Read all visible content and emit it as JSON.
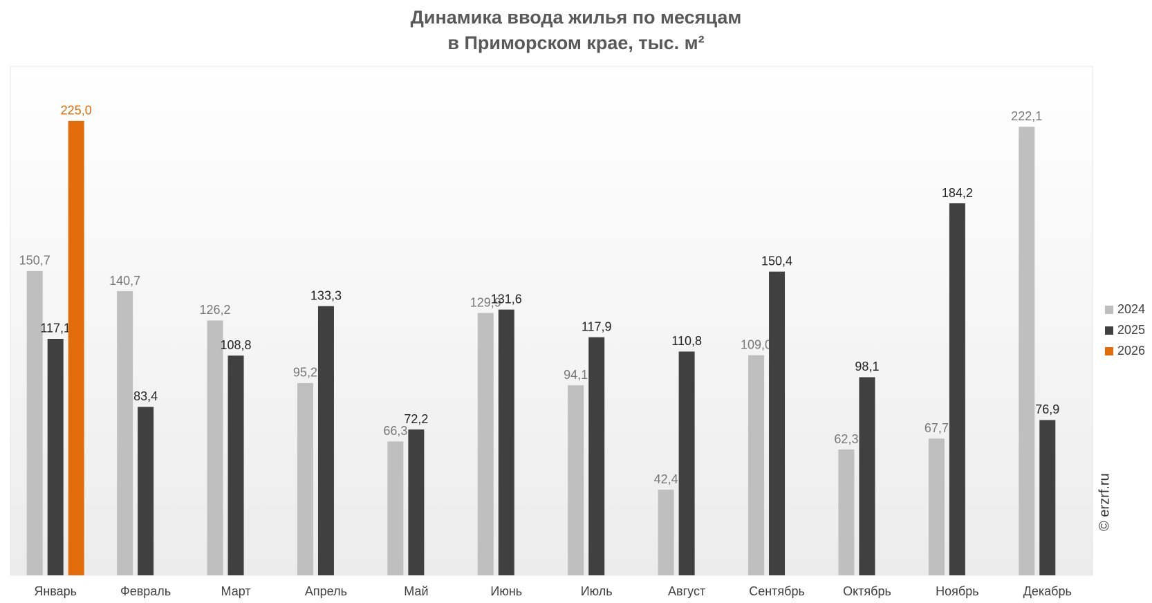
{
  "chart_data": {
    "type": "bar",
    "title": "Динамика ввода жилья по месяцам",
    "subtitle": "в Приморском крае, тыс. м²",
    "watermark": "© erzrf.ru",
    "categories": [
      "Январь",
      "Февраль",
      "Март",
      "Апрель",
      "Май",
      "Июнь",
      "Июль",
      "Август",
      "Сентябрь",
      "Октябрь",
      "Ноябрь",
      "Декабрь"
    ],
    "series": [
      {
        "name": "2024",
        "color": "#bfbfbf",
        "values": [
          150.7,
          140.7,
          126.2,
          95.2,
          66.3,
          129.9,
          94.1,
          42.4,
          109.0,
          62.3,
          67.7,
          222.1
        ],
        "value_labels": [
          "150,7",
          "140,7",
          "126,2",
          "95,2",
          "66,3",
          "129,9",
          "94,1",
          "42,4",
          "109,0",
          "62,3",
          "67,7",
          "222,1"
        ]
      },
      {
        "name": "2025",
        "color": "#404040",
        "values": [
          117.1,
          83.4,
          108.8,
          133.3,
          72.2,
          131.6,
          117.9,
          110.8,
          150.4,
          98.1,
          184.2,
          76.9
        ],
        "value_labels": [
          "117,1",
          "83,4",
          "108,8",
          "133,3",
          "72,2",
          "131,6",
          "117,9",
          "110,8",
          "150,4",
          "98,1",
          "184,2",
          "76,9"
        ]
      },
      {
        "name": "2026",
        "color": "#e36c0a",
        "values": [
          225.0,
          null,
          null,
          null,
          null,
          null,
          null,
          null,
          null,
          null,
          null,
          null
        ],
        "value_labels": [
          "225,0",
          null,
          null,
          null,
          null,
          null,
          null,
          null,
          null,
          null,
          null,
          null
        ]
      }
    ],
    "ylim": [
      0,
      252
    ],
    "legend": "right"
  }
}
